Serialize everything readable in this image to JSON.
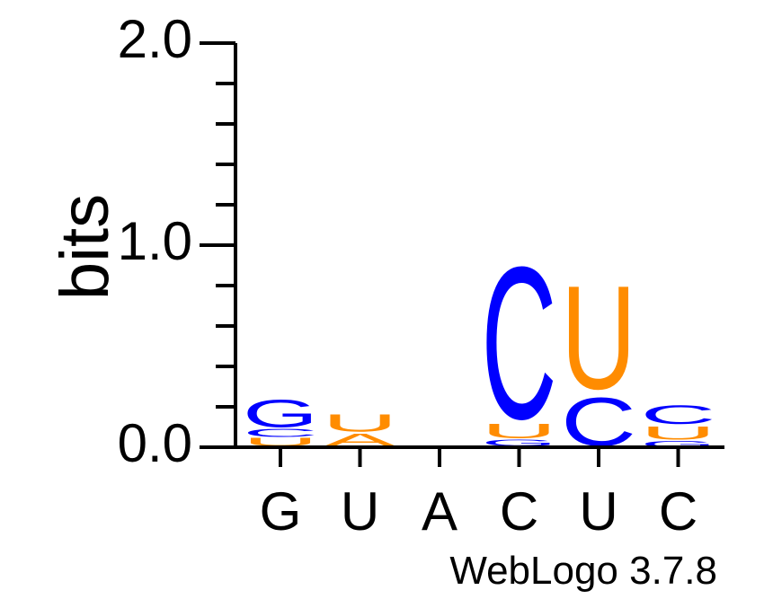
{
  "chart_data": {
    "type": "sequence-logo",
    "ylabel": "bits",
    "ylim": [
      0,
      2.0
    ],
    "y_ticks": [
      "0.0",
      "1.0",
      "2.0"
    ],
    "colors": {
      "A": "#ff8c00",
      "U": "#ff8c00",
      "C": "#0000ff",
      "G": "#0000ff"
    },
    "positions": [
      {
        "label": "G",
        "stack": [
          {
            "base": "A",
            "bits": 0.006
          },
          {
            "base": "U",
            "bits": 0.045
          },
          {
            "base": "C",
            "bits": 0.045
          },
          {
            "base": "G",
            "bits": 0.155
          }
        ]
      },
      {
        "label": "U",
        "stack": [
          {
            "base": "A",
            "bits": 0.075
          },
          {
            "base": "U",
            "bits": 0.1
          }
        ]
      },
      {
        "label": "A",
        "stack": []
      },
      {
        "label": "C",
        "stack": [
          {
            "base": "A",
            "bits": 0.006
          },
          {
            "base": "G",
            "bits": 0.036
          },
          {
            "base": "U",
            "bits": 0.082
          },
          {
            "base": "C",
            "bits": 0.868
          }
        ]
      },
      {
        "label": "U",
        "stack": [
          {
            "base": "C",
            "bits": 0.277
          },
          {
            "base": "U",
            "bits": 0.59
          }
        ]
      },
      {
        "label": "C",
        "stack": [
          {
            "base": "G",
            "bits": 0.036
          },
          {
            "base": "U",
            "bits": 0.077
          },
          {
            "base": "C",
            "bits": 0.105
          }
        ]
      }
    ]
  },
  "footer": {
    "credit": "WebLogo 3.7.8"
  }
}
